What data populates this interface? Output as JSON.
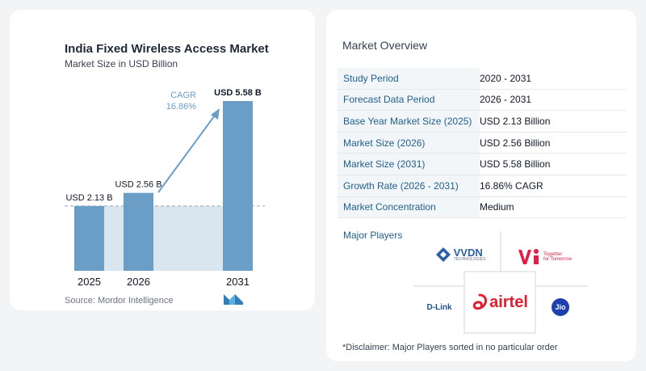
{
  "chart_data": {
    "type": "bar",
    "title": "India Fixed Wireless Access Market",
    "subtitle": "Market Size in USD Billion",
    "categories": [
      "2025",
      "2026",
      "2031"
    ],
    "values": [
      2.13,
      2.56,
      5.58
    ],
    "data_labels": [
      "USD 2.13 B",
      "USD 2.56 B",
      "USD 5.58 B"
    ],
    "cagr_label": "CAGR",
    "cagr_value": "16.86%",
    "ylim": [
      0,
      5.58
    ],
    "colors": {
      "bar": "#6a9ec7",
      "bar_light": "#d9e5ef",
      "arrow": "#6a9ec7"
    }
  },
  "source": "Source:  Mordor Intelligence",
  "overview": {
    "title": "Market Overview",
    "rows": [
      {
        "label": "Study Period",
        "value": "2020 - 2031"
      },
      {
        "label": "Forecast Data Period",
        "value": "2026 - 2031"
      },
      {
        "label": "Base Year Market Size (2025)",
        "value": "USD 2.13 Billion"
      },
      {
        "label": "Market Size (2026)",
        "value": "USD 2.56 Billion"
      },
      {
        "label": "Market Size (2031)",
        "value": "USD 5.58 Billion"
      },
      {
        "label": "Growth Rate (2026 - 2031)",
        "value": "16.86% CAGR"
      },
      {
        "label": "Market Concentration",
        "value": "Medium"
      }
    ]
  },
  "major_players": {
    "title": "Major Players",
    "logos": {
      "vvdn": "VVDN",
      "vvdn_sub": "TECHNOLOGIES",
      "vi_tagline_1": "Together",
      "vi_tagline_2": "for Tomorrow",
      "dlink": "D-Link",
      "airtel": "airtel",
      "jio": "Jio"
    }
  },
  "disclaimer": "*Disclaimer: Major Players sorted in no particular order"
}
